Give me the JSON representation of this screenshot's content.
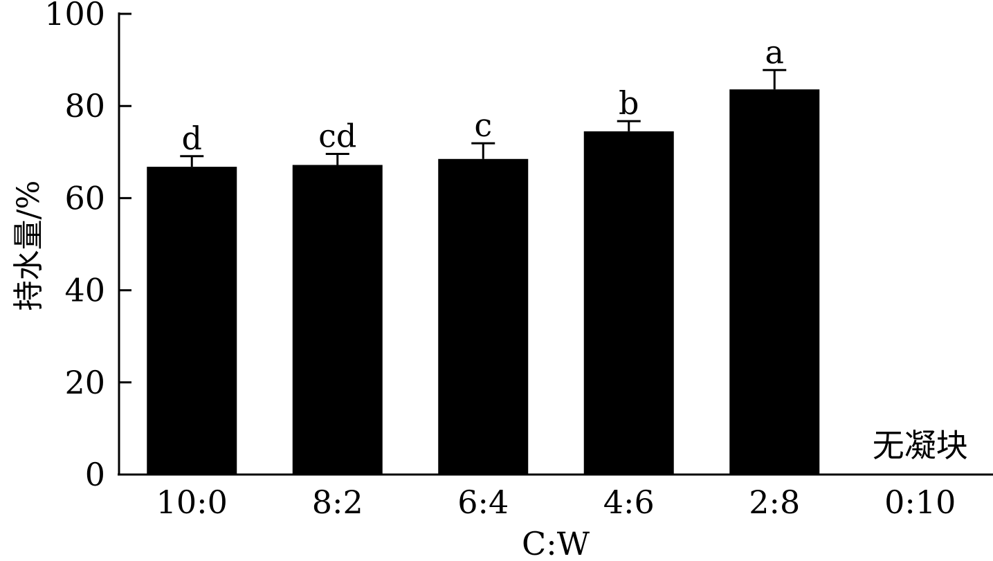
{
  "chart_data": {
    "type": "bar",
    "title": "",
    "xlabel": "C:W",
    "ylabel": "持水量/%",
    "ylim": [
      0,
      100
    ],
    "yticks": [
      "0",
      "20",
      "40",
      "60",
      "80",
      "100"
    ],
    "categories": [
      "10:0",
      "8:2",
      "6:4",
      "4:6",
      "2:8",
      "0:10"
    ],
    "series": [
      {
        "values": [
          66.8,
          67.2,
          68.5,
          74.5,
          83.6,
          null
        ],
        "errors": [
          2.3,
          2.4,
          3.4,
          2.2,
          4.2,
          null
        ],
        "labels": [
          "d",
          "cd",
          "c",
          "b",
          "a",
          ""
        ]
      }
    ],
    "annotations": [
      {
        "category": "0:10",
        "text": "无凝块"
      }
    ],
    "bar_color": "#000000",
    "grid": false,
    "legend": "none"
  }
}
